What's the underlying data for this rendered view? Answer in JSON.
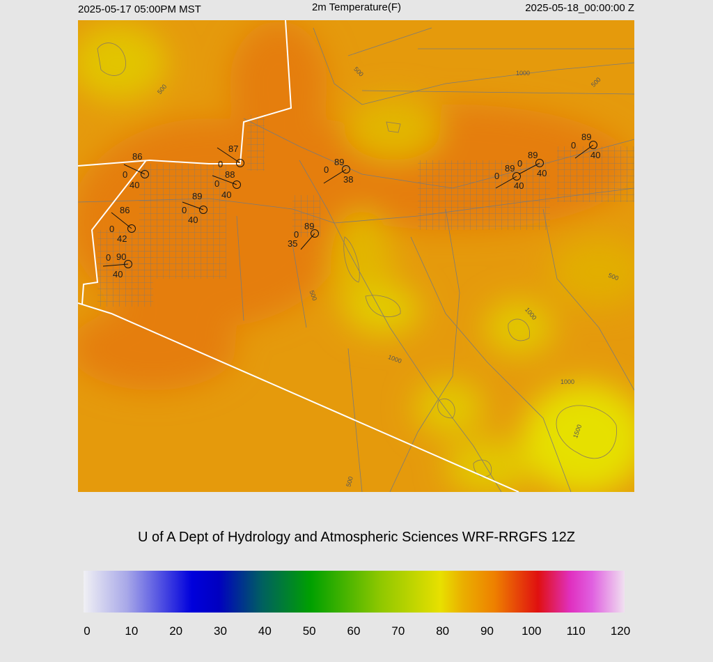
{
  "header": {
    "valid_local": "2025-05-17 05:00PM MST",
    "title": "2m Temperature(F)",
    "valid_utc": "2025-05-18_00:00:00 Z"
  },
  "stations": [
    {
      "temperature": 86,
      "code": "0",
      "dewpoint": 40
    },
    {
      "temperature": 87,
      "code": "0"
    },
    {
      "temperature": 88,
      "code": "0",
      "dewpoint": 40
    },
    {
      "temperature": 89,
      "code": "0",
      "dewpoint": 40
    },
    {
      "temperature": 86,
      "code": "0",
      "dewpoint": 42
    },
    {
      "temperature": 90,
      "code": "0",
      "dewpoint": 40
    },
    {
      "temperature": 89,
      "code": "0",
      "dewpoint": 35
    },
    {
      "temperature": 89,
      "code": "0",
      "dewpoint": 38
    },
    {
      "temperature": 89,
      "code": "0",
      "dewpoint": 40
    },
    {
      "temperature": 89,
      "code": "0",
      "dewpoint": 40
    },
    {
      "temperature": 89,
      "code": "0",
      "dewpoint": 40
    }
  ],
  "contour_labels": [
    "500",
    "500",
    "1000",
    "500",
    "500",
    "500",
    "1000",
    "1000",
    "1000",
    "1500",
    "500"
  ],
  "credit": "U of A Dept of Hydrology and Atmospheric Sciences WRF-RRGFS 12Z",
  "colorbar": {
    "ticks": [
      0,
      10,
      20,
      30,
      40,
      50,
      60,
      70,
      80,
      90,
      100,
      110,
      120
    ]
  }
}
